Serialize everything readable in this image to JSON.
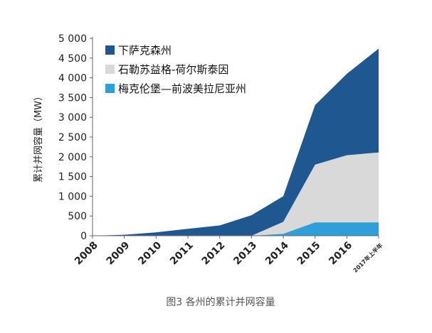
{
  "chart_data": {
    "type": "area",
    "stacked": true,
    "categories": [
      "2008",
      "2009",
      "2010",
      "2011",
      "2012",
      "2013",
      "2014",
      "2015",
      "2016",
      "2017年上半年"
    ],
    "series": [
      {
        "name": "梅克伦堡—前波美拉尼亚州",
        "color": "#2E9FD8",
        "values": [
          0,
          0,
          0,
          0,
          0,
          0,
          50,
          340,
          340,
          340
        ]
      },
      {
        "name": "石勒苏益格-荷尔斯泰因",
        "color": "#D9D9D9",
        "values": [
          0,
          0,
          0,
          0,
          0,
          0,
          300,
          1460,
          1700,
          1770
        ]
      },
      {
        "name": "下萨克森州",
        "color": "#1F5791",
        "values": [
          0,
          25,
          85,
          175,
          260,
          520,
          650,
          1510,
          2060,
          2630
        ]
      }
    ],
    "ylabel": "累计并网容量（MW）",
    "xlabel": "",
    "ylim": [
      0,
      5000
    ],
    "yticks": [
      "0",
      "500",
      "1 000",
      "1 500",
      "2 000",
      "2 500",
      "3 000",
      "3 500",
      "4 000",
      "4 500",
      "5 000"
    ],
    "legend_position": "top-left",
    "caption": "图3  各州的累计并网容量"
  }
}
